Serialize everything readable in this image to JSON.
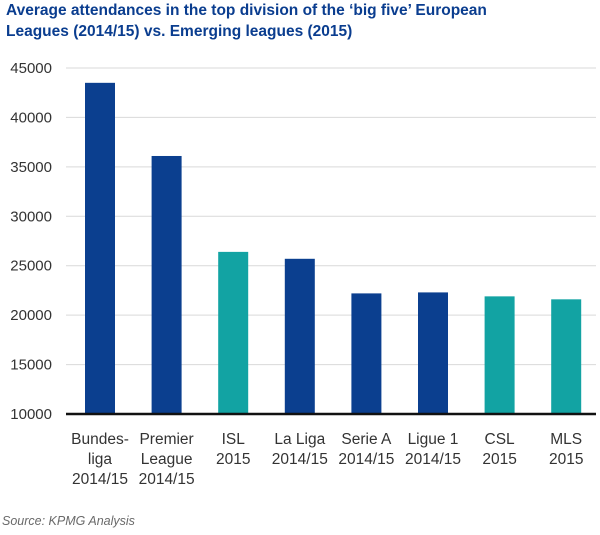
{
  "title_lines": [
    "Average attendances in the top division of the ‘big five’ European",
    "Leagues (2014/15) vs. Emerging leagues (2015)"
  ],
  "source": "Source: KPMG Analysis",
  "colors": {
    "european": "#0b3f8f",
    "emerging": "#12a3a3",
    "grid": "#d9d9d9",
    "axis": "#111111"
  },
  "chart_data": {
    "type": "bar",
    "title": "Average attendances in the top division of the ‘big five’ European Leagues (2014/15) vs. Emerging leagues (2015)",
    "categories": [
      [
        "Bundes-",
        "liga",
        "2014/15"
      ],
      [
        "Premier",
        "League",
        "2014/15"
      ],
      [
        "ISL",
        "2015"
      ],
      [
        "La Liga",
        "2014/15"
      ],
      [
        "Serie A",
        "2014/15"
      ],
      [
        "Ligue 1",
        "2014/15"
      ],
      [
        "CSL",
        "2015"
      ],
      [
        "MLS",
        "2015"
      ]
    ],
    "values": [
      43500,
      36100,
      26400,
      25700,
      22200,
      22300,
      21900,
      21600
    ],
    "groups": [
      "european",
      "european",
      "emerging",
      "european",
      "european",
      "european",
      "emerging",
      "emerging"
    ],
    "ylim": [
      10000,
      45000
    ],
    "yticks": [
      10000,
      15000,
      20000,
      25000,
      30000,
      35000,
      40000,
      45000
    ],
    "grid": true,
    "xlabel": "",
    "ylabel": ""
  }
}
